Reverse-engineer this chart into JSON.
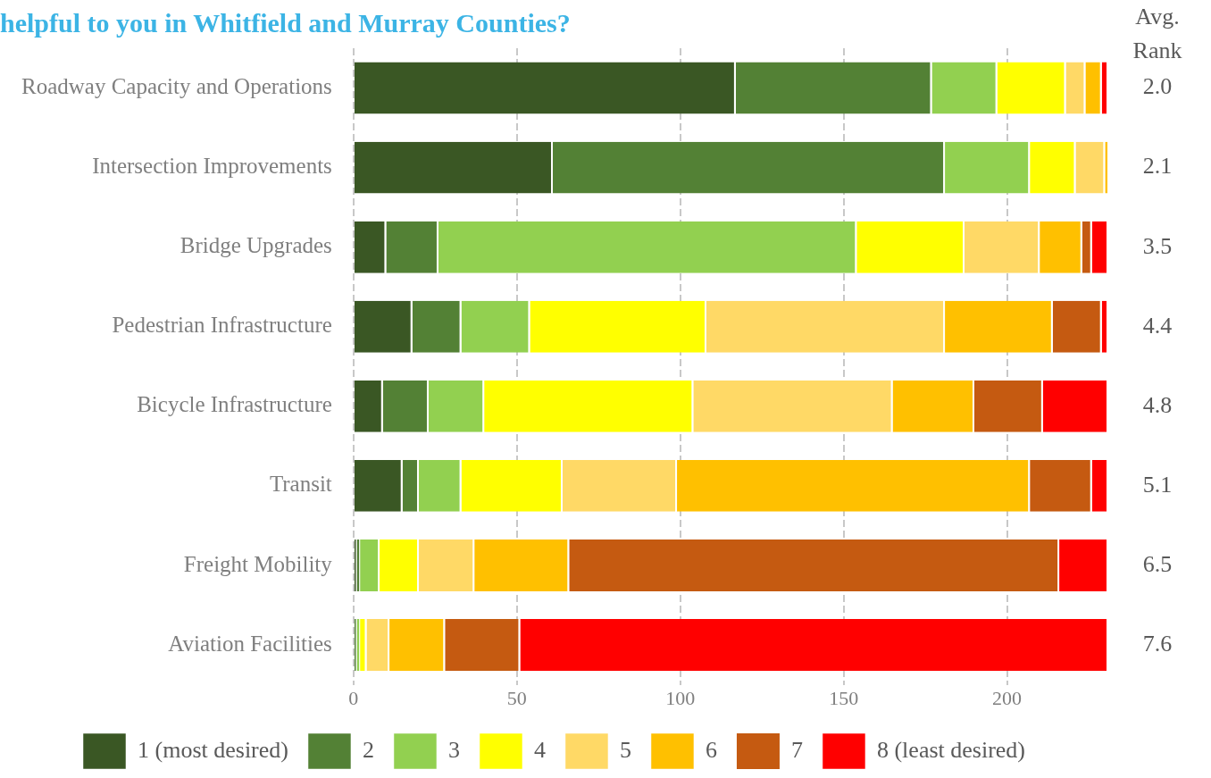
{
  "chart_data": {
    "type": "bar",
    "orientation": "horizontal",
    "stacked": true,
    "title": "helpful to you in Whitfield and Murray Counties?",
    "categories": [
      "Roadway Capacity and Operations",
      "Intersection Improvements",
      "Bridge Upgrades",
      "Pedestrian Infrastructure",
      "Bicycle Infrastructure",
      "Transit",
      "Freight Mobility",
      "Aviation Facilities"
    ],
    "series": [
      {
        "name": "1 (most desired)",
        "color": "#3a5724",
        "values": [
          117,
          61,
          10,
          18,
          9,
          15,
          1,
          null
        ]
      },
      {
        "name": "2",
        "color": "#538135",
        "values": [
          60,
          120,
          16,
          15,
          14,
          5,
          1,
          1
        ]
      },
      {
        "name": "3",
        "color": "#92d050",
        "values": [
          20,
          26,
          128,
          21,
          17,
          13,
          6,
          1
        ]
      },
      {
        "name": "4",
        "color": "#ffff00",
        "values": [
          21,
          14,
          33,
          54,
          64,
          31,
          12,
          2
        ]
      },
      {
        "name": "5",
        "color": "#ffd966",
        "values": [
          6,
          9,
          23,
          73,
          61,
          35,
          17,
          7
        ]
      },
      {
        "name": "6",
        "color": "#ffc000",
        "values": [
          5,
          1,
          13,
          33,
          25,
          108,
          29,
          17
        ]
      },
      {
        "name": "7",
        "color": "#c55a11",
        "values": [
          null,
          null,
          3,
          15,
          21,
          19,
          150,
          23
        ]
      },
      {
        "name": "8 (least desired)",
        "color": "#ff0000",
        "values": [
          2,
          null,
          5,
          2,
          20,
          5,
          15,
          180
        ]
      }
    ],
    "xlim": [
      0,
      231
    ],
    "xticks": [
      0,
      50,
      100,
      150,
      200
    ],
    "grid": "x",
    "legend": "bottom",
    "annotations": [
      "Avg. Rank",
      "2.0",
      "2.1",
      "3.5",
      "4.4",
      "4.8",
      "5.1",
      "6.5",
      "7.6"
    ]
  }
}
